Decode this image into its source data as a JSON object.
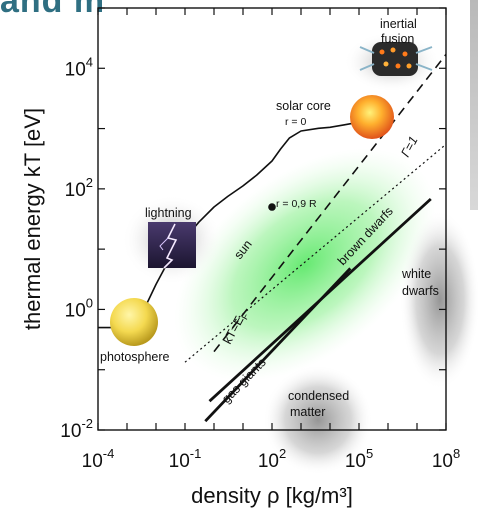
{
  "header": {
    "cropped_text": "and m",
    "left_fragment": ""
  },
  "colors": {
    "heading": "#2f6f82",
    "curve": "#111111",
    "gas_blob": "#5ee86a",
    "blob": "#8a8a8a"
  },
  "icons": [
    "sun-sphere-icon",
    "solar-core-sphere-icon",
    "lightning-image-icon",
    "inertial-fusion-target-icon"
  ],
  "chart_data": {
    "type": "line",
    "title": "",
    "xlabel": "density ρ [kg/m³]",
    "ylabel": "thermal energy kT [eV]",
    "x_scale": "log",
    "y_scale": "log",
    "xlim": [
      0.0001,
      100000000
    ],
    "ylim": [
      0.01,
      100000
    ],
    "x_ticks": [
      {
        "value": 0.0001,
        "base": "10",
        "exp": "-4"
      },
      {
        "value": 0.1,
        "base": "10",
        "exp": "-1"
      },
      {
        "value": 100,
        "base": "10",
        "exp": "2"
      },
      {
        "value": 100000,
        "base": "10",
        "exp": "5"
      },
      {
        "value": 100000000,
        "base": "10",
        "exp": "8"
      }
    ],
    "y_ticks": [
      {
        "value": 0.01,
        "base": "10",
        "exp": "-2"
      },
      {
        "value": 1,
        "base": "10",
        "exp": "0"
      },
      {
        "value": 100,
        "base": "10",
        "exp": "2"
      },
      {
        "value": 10000,
        "base": "10",
        "exp": "4"
      }
    ],
    "series": [
      {
        "name": "sun",
        "style": "solid",
        "points": [
          [
            0.0001,
            0.5
          ],
          [
            0.0003,
            0.5
          ],
          [
            0.001,
            0.55
          ],
          [
            0.002,
            0.7
          ],
          [
            0.005,
            1.3
          ],
          [
            0.01,
            2.6
          ],
          [
            0.03,
            7
          ],
          [
            0.1,
            15
          ],
          [
            0.3,
            28
          ],
          [
            1,
            50
          ],
          [
            3,
            75
          ],
          [
            10,
            112
          ],
          [
            30,
            170
          ],
          [
            100,
            290
          ],
          [
            200,
            460
          ],
          [
            400,
            700
          ],
          [
            1000,
            910
          ],
          [
            4000,
            1010
          ],
          [
            10000,
            1050
          ],
          [
            30000,
            1150
          ],
          [
            80000,
            1250
          ],
          [
            150000,
            1300
          ]
        ]
      },
      {
        "name": "Γ=1",
        "style": "dotted",
        "points": [
          [
            0.1,
            0.133
          ],
          [
            100000000,
            548
          ]
        ]
      },
      {
        "name": "kT=E_F",
        "style": "dashed",
        "points": [
          [
            1,
            0.2
          ],
          [
            400000000,
            40000
          ]
        ]
      },
      {
        "name": "brown dwarfs",
        "style": "solid",
        "points": [
          [
            0.7,
            0.03
          ],
          [
            30000000,
            68
          ]
        ]
      },
      {
        "name": "gas giants",
        "style": "solid",
        "points": [
          [
            0.5,
            0.014
          ],
          [
            50000,
            4.8
          ]
        ]
      }
    ],
    "markers": [
      {
        "label": "r = 0,9 R",
        "x": 100,
        "y": 50
      }
    ],
    "annotations": {
      "sun": "sun",
      "gamma": "Γ=1",
      "kt_ef": "kT=E",
      "kt_ef_sub": "F",
      "brown_dwarfs": "brown dwarfs",
      "gas_giants": "gas giants",
      "photosphere": "photosphere",
      "solar_core": "solar core",
      "solar_core_r": "r = 0",
      "r09": "r = 0,9 R",
      "lightning": "lightning",
      "inertial": "inertial",
      "fusion": "fusion",
      "white": "white",
      "dwarfs": "dwarfs",
      "condensed": "condensed",
      "matter": "matter"
    }
  }
}
